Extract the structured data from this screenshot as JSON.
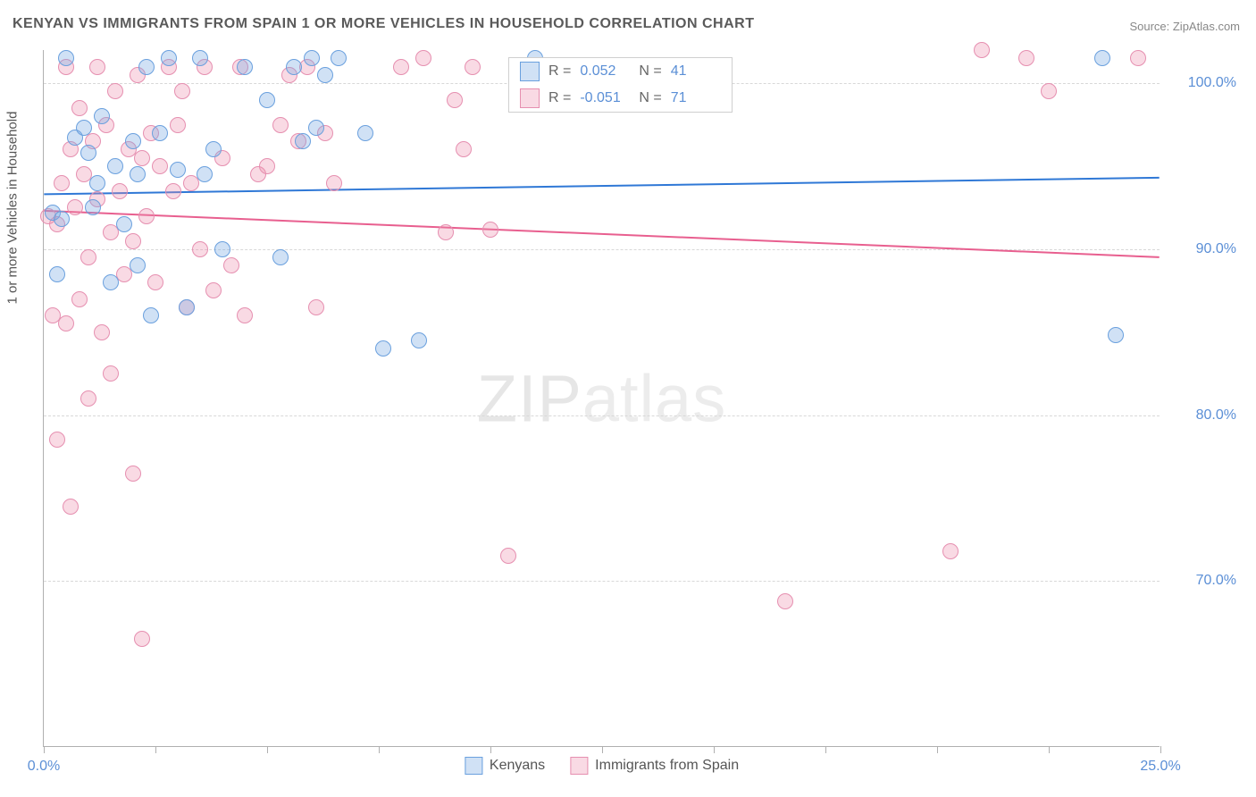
{
  "title": "KENYAN VS IMMIGRANTS FROM SPAIN 1 OR MORE VEHICLES IN HOUSEHOLD CORRELATION CHART",
  "source_label": "Source: ZipAtlas.com",
  "ylabel": "1 or more Vehicles in Household",
  "watermark_a": "ZIP",
  "watermark_b": "atlas",
  "chart": {
    "type": "scatter",
    "background_color": "#ffffff",
    "grid_color": "#d8d8d8",
    "axis_color": "#b0b0b0",
    "tick_label_color": "#5b8fd6",
    "axis_label_color": "#555555",
    "xlim": [
      0,
      25
    ],
    "ylim": [
      60,
      102
    ],
    "x_tick_positions": [
      0,
      2.5,
      5,
      7.5,
      10,
      12.5,
      15,
      17.5,
      20,
      22.5,
      25
    ],
    "x_tick_labels": {
      "0": "0.0%",
      "25": "25.0%"
    },
    "y_ticks": [
      70,
      80,
      90,
      100
    ],
    "y_tick_labels": [
      "70.0%",
      "80.0%",
      "90.0%",
      "100.0%"
    ],
    "marker_radius": 9,
    "marker_stroke_width": 1.5,
    "trend_line_width": 2,
    "series": {
      "kenyans": {
        "label": "Kenyans",
        "fill_color": "rgba(120,170,225,0.35)",
        "stroke_color": "#6aa0de",
        "line_color": "#2f78d6",
        "R": "0.052",
        "N": "41",
        "trend": {
          "y_at_xmin": 93.3,
          "y_at_xmax": 94.3
        },
        "points": [
          [
            0.2,
            92.2
          ],
          [
            0.3,
            88.5
          ],
          [
            0.4,
            91.8
          ],
          [
            0.5,
            101.5
          ],
          [
            0.7,
            96.7
          ],
          [
            0.9,
            97.3
          ],
          [
            1.0,
            95.8
          ],
          [
            1.1,
            92.5
          ],
          [
            1.2,
            94.0
          ],
          [
            1.3,
            98.0
          ],
          [
            1.5,
            88.0
          ],
          [
            1.6,
            95.0
          ],
          [
            1.8,
            91.5
          ],
          [
            2.0,
            96.5
          ],
          [
            2.1,
            94.5
          ],
          [
            2.1,
            89.0
          ],
          [
            2.3,
            101.0
          ],
          [
            2.4,
            86.0
          ],
          [
            2.6,
            97.0
          ],
          [
            2.8,
            101.5
          ],
          [
            3.0,
            94.8
          ],
          [
            3.2,
            86.5
          ],
          [
            3.5,
            101.5
          ],
          [
            3.6,
            94.5
          ],
          [
            3.8,
            96.0
          ],
          [
            4.0,
            90.0
          ],
          [
            4.5,
            101.0
          ],
          [
            5.0,
            99.0
          ],
          [
            5.3,
            89.5
          ],
          [
            5.6,
            101.0
          ],
          [
            5.8,
            96.5
          ],
          [
            6.0,
            101.5
          ],
          [
            6.1,
            97.3
          ],
          [
            6.3,
            100.5
          ],
          [
            6.6,
            101.5
          ],
          [
            7.2,
            97.0
          ],
          [
            7.6,
            84.0
          ],
          [
            8.4,
            84.5
          ],
          [
            11.0,
            101.5
          ],
          [
            23.7,
            101.5
          ],
          [
            24.0,
            84.8
          ]
        ]
      },
      "spain": {
        "label": "Immigrants from Spain",
        "fill_color": "rgba(235,140,170,0.32)",
        "stroke_color": "#e68fb0",
        "line_color": "#e85f8f",
        "R": "-0.051",
        "N": "71",
        "trend": {
          "y_at_xmin": 92.3,
          "y_at_xmax": 89.5
        },
        "points": [
          [
            0.1,
            92.0
          ],
          [
            0.2,
            86.0
          ],
          [
            0.3,
            91.5
          ],
          [
            0.3,
            78.5
          ],
          [
            0.4,
            94.0
          ],
          [
            0.5,
            101.0
          ],
          [
            0.5,
            85.5
          ],
          [
            0.6,
            96.0
          ],
          [
            0.6,
            74.5
          ],
          [
            0.7,
            92.5
          ],
          [
            0.8,
            98.5
          ],
          [
            0.8,
            87.0
          ],
          [
            0.9,
            94.5
          ],
          [
            1.0,
            89.5
          ],
          [
            1.0,
            81.0
          ],
          [
            1.1,
            96.5
          ],
          [
            1.2,
            93.0
          ],
          [
            1.2,
            101.0
          ],
          [
            1.3,
            85.0
          ],
          [
            1.4,
            97.5
          ],
          [
            1.5,
            91.0
          ],
          [
            1.5,
            82.5
          ],
          [
            1.6,
            99.5
          ],
          [
            1.7,
            93.5
          ],
          [
            1.8,
            88.5
          ],
          [
            1.9,
            96.0
          ],
          [
            2.0,
            90.5
          ],
          [
            2.0,
            76.5
          ],
          [
            2.1,
            100.5
          ],
          [
            2.2,
            95.5
          ],
          [
            2.2,
            66.5
          ],
          [
            2.3,
            92.0
          ],
          [
            2.4,
            97.0
          ],
          [
            2.5,
            88.0
          ],
          [
            2.6,
            95.0
          ],
          [
            2.8,
            101.0
          ],
          [
            2.9,
            93.5
          ],
          [
            3.0,
            97.5
          ],
          [
            3.1,
            99.5
          ],
          [
            3.2,
            86.5
          ],
          [
            3.3,
            94.0
          ],
          [
            3.5,
            90.0
          ],
          [
            3.6,
            101.0
          ],
          [
            3.8,
            87.5
          ],
          [
            4.0,
            95.5
          ],
          [
            4.2,
            89.0
          ],
          [
            4.4,
            101.0
          ],
          [
            4.5,
            86.0
          ],
          [
            4.8,
            94.5
          ],
          [
            5.0,
            95.0
          ],
          [
            5.3,
            97.5
          ],
          [
            5.5,
            100.5
          ],
          [
            5.7,
            96.5
          ],
          [
            5.9,
            101.0
          ],
          [
            6.1,
            86.5
          ],
          [
            6.3,
            97.0
          ],
          [
            6.5,
            94.0
          ],
          [
            8.0,
            101.0
          ],
          [
            8.5,
            101.5
          ],
          [
            9.0,
            91.0
          ],
          [
            9.2,
            99.0
          ],
          [
            9.4,
            96.0
          ],
          [
            9.6,
            101.0
          ],
          [
            10.0,
            91.2
          ],
          [
            10.4,
            71.5
          ],
          [
            16.6,
            68.8
          ],
          [
            20.3,
            71.8
          ],
          [
            21.0,
            102.0
          ],
          [
            22.0,
            101.5
          ],
          [
            22.5,
            99.5
          ],
          [
            24.5,
            101.5
          ]
        ]
      }
    },
    "legend_top": {
      "r_prefix": "R =",
      "n_prefix": "N ="
    }
  }
}
